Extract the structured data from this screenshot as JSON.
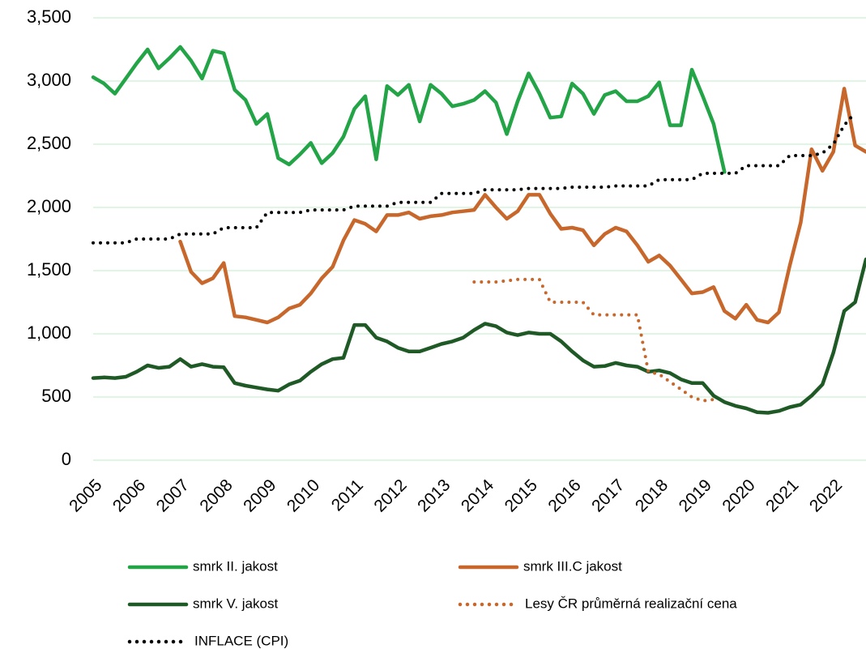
{
  "chart_data": {
    "type": "line",
    "x": [
      2005,
      2005.25,
      2005.5,
      2005.75,
      2006,
      2006.25,
      2006.5,
      2006.75,
      2007,
      2007.25,
      2007.5,
      2007.75,
      2008,
      2008.25,
      2008.5,
      2008.75,
      2009,
      2009.25,
      2009.5,
      2009.75,
      2010,
      2010.25,
      2010.5,
      2010.75,
      2011,
      2011.25,
      2011.5,
      2011.75,
      2012,
      2012.25,
      2012.5,
      2012.75,
      2013,
      2013.25,
      2013.5,
      2013.75,
      2014,
      2014.25,
      2014.5,
      2014.75,
      2015,
      2015.25,
      2015.5,
      2015.75,
      2016,
      2016.25,
      2016.5,
      2016.75,
      2017,
      2017.25,
      2017.5,
      2017.75,
      2018,
      2018.25,
      2018.5,
      2018.75,
      2019,
      2019.25,
      2019.5,
      2019.75,
      2020,
      2020.25,
      2020.5,
      2020.75,
      2021,
      2021.25,
      2021.5,
      2021.75,
      2022,
      2022.25,
      2022.5,
      2022.75
    ],
    "series": [
      {
        "name": "smrk II. jakost",
        "color": "#22a447",
        "style": "solid",
        "values": [
          3030,
          2980,
          2900,
          3020,
          3140,
          3250,
          3100,
          3180,
          3270,
          3160,
          3020,
          3240,
          3220,
          2930,
          2850,
          2660,
          2740,
          2390,
          2340,
          2420,
          2510,
          2350,
          2430,
          2560,
          2780,
          2880,
          2380,
          2960,
          2890,
          2970,
          2680,
          2970,
          2900,
          2800,
          2820,
          2850,
          2920,
          2830,
          2580,
          2840,
          3060,
          2900,
          2710,
          2720,
          2980,
          2900,
          2740,
          2890,
          2920,
          2840,
          2840,
          2880,
          2990,
          2650,
          2650,
          3090,
          2880,
          2660,
          2280,
          null,
          null,
          null,
          null,
          null,
          null,
          null,
          null,
          null,
          null,
          null,
          null,
          null
        ]
      },
      {
        "name": "smrk III.C jakost",
        "color": "#c8672b",
        "style": "solid",
        "values": [
          null,
          null,
          null,
          null,
          null,
          null,
          null,
          null,
          1730,
          1490,
          1400,
          1440,
          1560,
          1140,
          1130,
          1110,
          1090,
          1130,
          1200,
          1230,
          1320,
          1440,
          1530,
          1740,
          1900,
          1870,
          1810,
          1940,
          1940,
          1960,
          1910,
          1930,
          1940,
          1960,
          1970,
          1980,
          2100,
          2000,
          1910,
          1970,
          2100,
          2100,
          1950,
          1830,
          1840,
          1820,
          1700,
          1790,
          1840,
          1810,
          1700,
          1570,
          1620,
          1540,
          1430,
          1320,
          1330,
          1370,
          1180,
          1120,
          1230,
          1110,
          1090,
          1170,
          1540,
          1880,
          2460,
          2290,
          2440,
          2940,
          2490,
          2440
        ]
      },
      {
        "name": "smrk V. jakost",
        "color": "#1f5a26",
        "style": "solid",
        "values": [
          650,
          655,
          650,
          660,
          700,
          750,
          730,
          740,
          800,
          740,
          760,
          740,
          735,
          610,
          590,
          575,
          560,
          550,
          600,
          630,
          700,
          760,
          800,
          810,
          1070,
          1070,
          970,
          940,
          890,
          860,
          860,
          890,
          920,
          940,
          970,
          1030,
          1080,
          1060,
          1010,
          990,
          1010,
          1000,
          1000,
          940,
          860,
          790,
          740,
          745,
          770,
          750,
          740,
          700,
          710,
          690,
          640,
          610,
          610,
          510,
          460,
          430,
          410,
          380,
          375,
          390,
          420,
          440,
          510,
          600,
          850,
          1180,
          1250,
          1590
        ]
      },
      {
        "name": "Lesy ČR průměrná realizační cena",
        "color": "#c8672b",
        "style": "dotted",
        "values": [
          null,
          null,
          null,
          null,
          null,
          null,
          null,
          null,
          null,
          null,
          null,
          null,
          null,
          null,
          null,
          null,
          null,
          null,
          null,
          null,
          null,
          null,
          null,
          null,
          null,
          null,
          null,
          null,
          null,
          null,
          null,
          null,
          null,
          null,
          null,
          1410,
          1410,
          1410,
          1420,
          1430,
          1430,
          1430,
          1250,
          1250,
          1250,
          1250,
          1150,
          1150,
          1150,
          1150,
          1150,
          700,
          680,
          620,
          560,
          500,
          470,
          480,
          null,
          null,
          null,
          null,
          null,
          null,
          null,
          null,
          null,
          null,
          null,
          null,
          null,
          null
        ]
      },
      {
        "name": "INFLACE (CPI)",
        "color": "#000000",
        "style": "dotted",
        "values": [
          1720,
          1720,
          1720,
          1720,
          1750,
          1750,
          1750,
          1750,
          1790,
          1790,
          1790,
          1790,
          1840,
          1840,
          1840,
          1840,
          1960,
          1960,
          1960,
          1960,
          1980,
          1980,
          1980,
          1980,
          2010,
          2010,
          2010,
          2010,
          2040,
          2040,
          2040,
          2040,
          2110,
          2110,
          2110,
          2110,
          2140,
          2140,
          2140,
          2140,
          2150,
          2150,
          2150,
          2150,
          2160,
          2160,
          2160,
          2160,
          2170,
          2170,
          2170,
          2170,
          2220,
          2220,
          2220,
          2220,
          2270,
          2270,
          2270,
          2270,
          2330,
          2330,
          2330,
          2330,
          2410,
          2410,
          2410,
          2430,
          2500,
          2650,
          2750,
          null
        ]
      }
    ],
    "xlim": [
      2005,
      2022.75
    ],
    "xticks": [
      2005,
      2006,
      2007,
      2008,
      2009,
      2010,
      2011,
      2012,
      2013,
      2014,
      2015,
      2016,
      2017,
      2018,
      2019,
      2020,
      2021,
      2022
    ],
    "ylim": [
      0,
      3500
    ],
    "yticks": [
      0,
      500,
      {
        "value": 1000,
        "label": "1,000"
      },
      {
        "value": 1500,
        "label": "1,500"
      },
      {
        "value": 2000,
        "label": "2,000"
      },
      {
        "value": 2500,
        "label": "2,500"
      },
      {
        "value": 3000,
        "label": "3,000"
      },
      {
        "value": 3500,
        "label": "3,500"
      }
    ],
    "grid": true,
    "legend": "bottom"
  }
}
